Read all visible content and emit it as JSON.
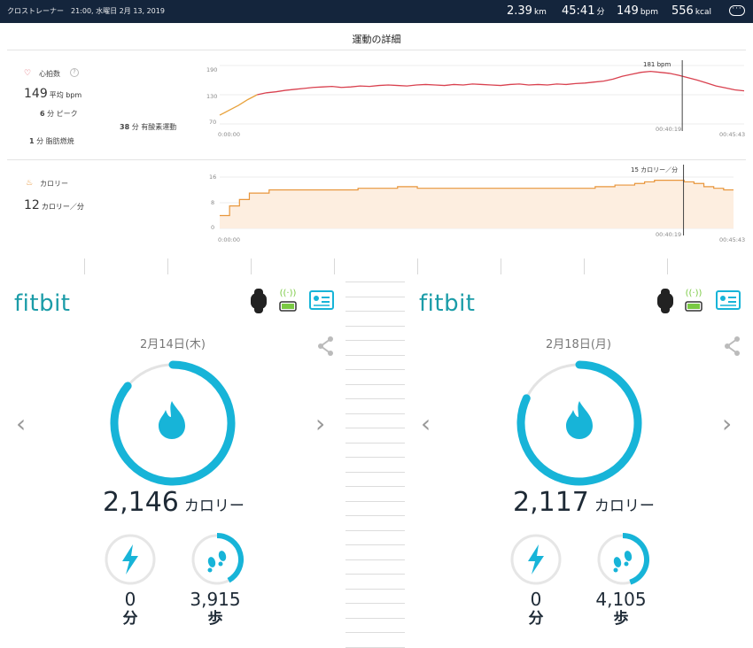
{
  "topbar": {
    "activity": "クロストレーナー",
    "datetime": "21:00, 水曜日 2月 13, 2019",
    "distance": "2.39",
    "distance_unit": "km",
    "duration": "45:41",
    "duration_unit": "分",
    "heart": "149",
    "heart_unit": "bpm",
    "calories": "556",
    "calories_unit": "kcal",
    "menu_icon": "more-icon"
  },
  "detail": {
    "title": "運動の詳細",
    "heart": {
      "label": "心拍数",
      "avg_value": "149",
      "avg_unit": "平均 bpm",
      "peak_value": "6",
      "peak_unit": "分 ピーク",
      "cardio_value": "38",
      "cardio_unit": "分 有酸素運動",
      "fatburn_value": "1",
      "fatburn_unit": "分 脂肪燃焼",
      "color": "#d9414f"
    },
    "calorie": {
      "label": "カロリー",
      "value": "12",
      "unit": "カロリー／分",
      "color": "#e8963c"
    }
  },
  "chart_data": [
    {
      "type": "line",
      "yticks": [
        "190",
        "130",
        "70"
      ],
      "ylim": [
        70,
        190
      ],
      "x_start_label": "0:00:00",
      "x_end_label": "00:45:43",
      "marker_label": "181 bpm",
      "marker_time": "00:40:19",
      "marker_fraction": 0.882,
      "grid": true,
      "series": [
        {
          "values": [
            88,
            98,
            108,
            120,
            130,
            134,
            136,
            139,
            141,
            143,
            145,
            146,
            147,
            145,
            146,
            148,
            147,
            149,
            150,
            149,
            148,
            150,
            151,
            150,
            149,
            151,
            150,
            152,
            151,
            150,
            149,
            151,
            152,
            150,
            151,
            150,
            152,
            151,
            153,
            154,
            156,
            158,
            162,
            168,
            172,
            176,
            178,
            176,
            174,
            170,
            165,
            160,
            154,
            148,
            144,
            140,
            138
          ]
        }
      ]
    },
    {
      "type": "area",
      "yticks": [
        "16",
        "8",
        "0"
      ],
      "ylim": [
        0,
        16
      ],
      "x_start_label": "0:00:00",
      "x_end_label": "00:45:43",
      "marker_label": "15 カロリー／分",
      "marker_time": "00:40:19",
      "marker_fraction": 0.882,
      "grid": true,
      "series": [
        {
          "values": [
            4,
            7,
            9,
            11,
            11,
            12,
            12,
            12,
            12,
            12,
            12,
            12,
            12,
            12,
            12.5,
            12.5,
            12.5,
            12.5,
            13,
            13,
            12.5,
            12.5,
            12.5,
            12.5,
            12.5,
            12.5,
            12.5,
            12.5,
            12.5,
            12.5,
            12.5,
            12.5,
            12.5,
            12.5,
            12.5,
            12.5,
            12.5,
            12.5,
            13,
            13,
            13.5,
            13.5,
            14,
            14.5,
            15,
            15,
            15,
            14.5,
            14,
            13,
            12.5,
            12
          ]
        }
      ]
    }
  ],
  "panels": [
    {
      "logo": "fitbit",
      "date": "2月14日(木)",
      "calories": "2,146",
      "calories_unit": "カロリー",
      "active_minutes": "0",
      "active_unit": "分",
      "steps": "3,915",
      "steps_unit": "歩",
      "ring_progress": 0.86,
      "steps_progress": 0.42
    },
    {
      "logo": "fitbit",
      "date": "2月18日(月)",
      "calories": "2,117",
      "calories_unit": "カロリー",
      "active_minutes": "0",
      "active_unit": "分",
      "steps": "4,105",
      "steps_unit": "歩",
      "ring_progress": 0.82,
      "steps_progress": 0.45
    }
  ],
  "colors": {
    "teal": "#17b4d8",
    "topbar": "#14253c",
    "battery": "#7ac943"
  }
}
